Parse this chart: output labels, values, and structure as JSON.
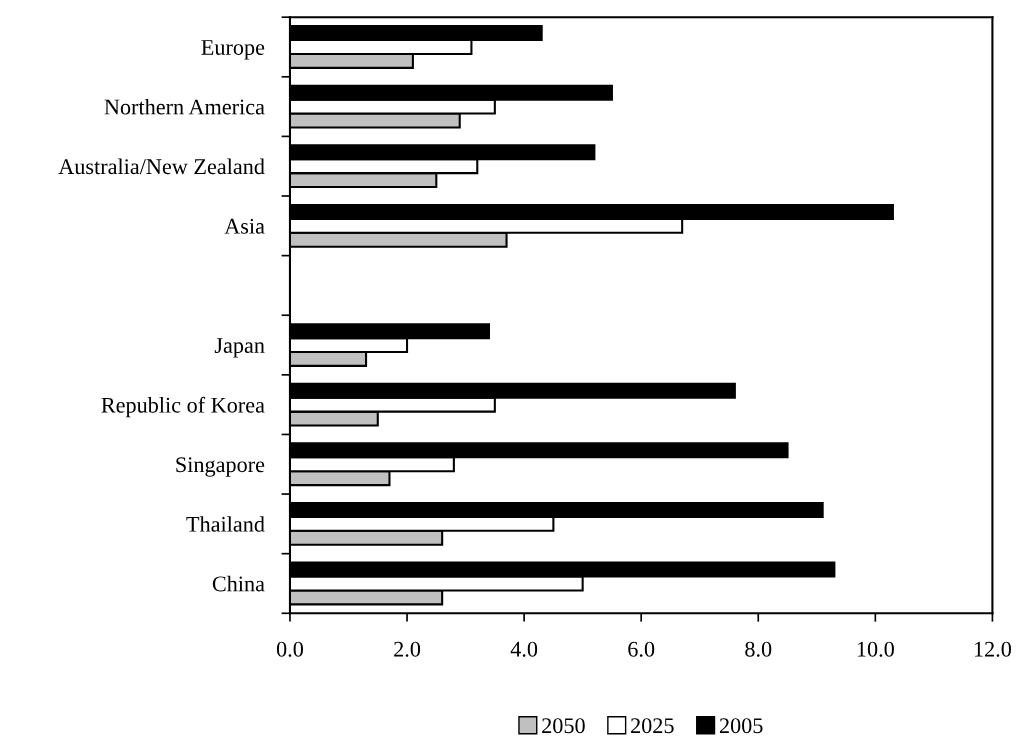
{
  "chart_data": {
    "type": "bar",
    "orientation": "horizontal",
    "categories": [
      "Europe",
      "Northern America",
      "Australia/New Zealand",
      "Asia",
      null,
      "Japan",
      "Republic of Korea",
      "Singapore",
      "Thailand",
      "China"
    ],
    "series": [
      {
        "name": "2050",
        "color": "#c0c0c0",
        "values": [
          2.1,
          2.9,
          2.5,
          3.7,
          null,
          1.3,
          1.5,
          1.7,
          2.6,
          2.6
        ]
      },
      {
        "name": "2025",
        "color": "#ffffff",
        "values": [
          3.1,
          3.5,
          3.2,
          6.7,
          null,
          2.0,
          3.5,
          2.8,
          4.5,
          5.0
        ]
      },
      {
        "name": "2005",
        "color": "#000000",
        "values": [
          4.3,
          5.5,
          5.2,
          10.3,
          null,
          3.4,
          7.6,
          8.5,
          9.1,
          9.3
        ]
      }
    ],
    "xlim": [
      0,
      12
    ],
    "xticks": [
      {
        "value": 0,
        "label": "0.0"
      },
      {
        "value": 2,
        "label": "2.0"
      },
      {
        "value": 4,
        "label": "4.0"
      },
      {
        "value": 6,
        "label": "6.0"
      },
      {
        "value": 8,
        "label": "8.0"
      },
      {
        "value": 10,
        "label": "10.0"
      },
      {
        "value": 12,
        "label": "12.0"
      }
    ],
    "grid": false,
    "legend": "bottom"
  }
}
